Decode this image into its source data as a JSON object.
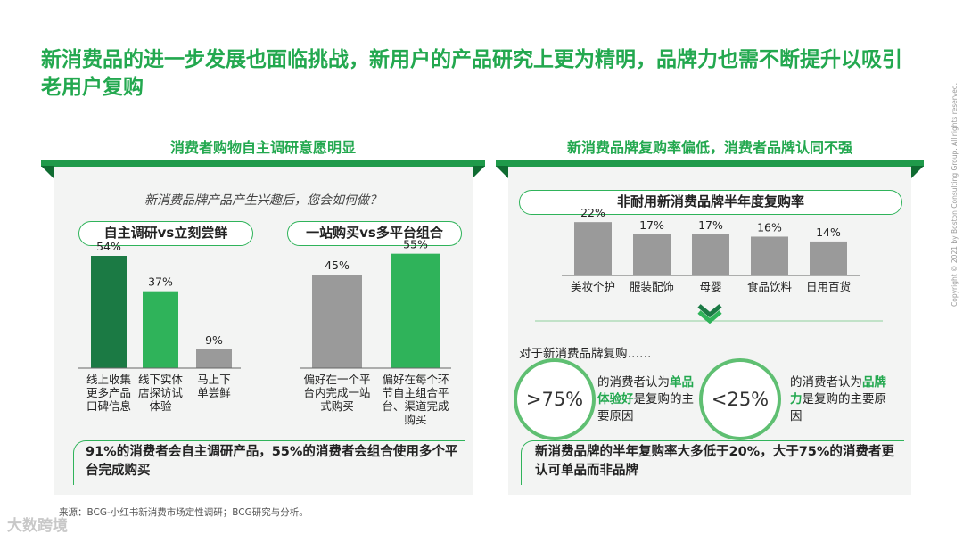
{
  "title": "新消费品的进一步发展也面临挑战，新用户的产品研究上更为精明，品牌力也需不断提升以吸引老用户复购",
  "left_panel": {
    "heading": "消费者购物自主调研意愿明显",
    "question": "新消费品牌产品产生兴趣后，您会如何做？",
    "pill_a": "自主调研vs立刻尝鲜",
    "pill_b": "一站购买vs多平台组合",
    "callout": "91%的消费者会自主调研产品，55%的消费者会组合使用多个平台完成购买"
  },
  "right_panel": {
    "heading": "新消费品牌复购率偏低，消费者品牌认同不强",
    "chart_pill": "非耐用新消费品牌半年度复购率",
    "intro": "对于新消费品牌复购……",
    "ring_a": {
      "value": ">75%",
      "pre": "的消费者认为",
      "hl": "单品体验好",
      "post": "是复购的主要原因"
    },
    "ring_b": {
      "value": "<25%",
      "pre": "的消费者认为",
      "hl": "品牌力",
      "post": "是复购的主要原因"
    },
    "callout": "新消费品牌的半年复购率大多低于20%，大于75%的消费者更认可单品而非品牌"
  },
  "chart_data": [
    {
      "type": "bar",
      "categories": [
        "线上收集更多产品口碑信息",
        "线下实体店探访试体验",
        "马上下单尝鲜"
      ],
      "labels": [
        "线上收集\n更多产品\n口碑信息",
        "线下实体\n店探访试\n体验",
        "马上下\n单尝鲜"
      ],
      "values": [
        54,
        37,
        9
      ],
      "value_labels": [
        "54%",
        "37%",
        "9%"
      ],
      "colors": [
        "#1b7a44",
        "#2fb35a",
        "#9a9a9a"
      ],
      "ylim": [
        0,
        60
      ]
    },
    {
      "type": "bar",
      "categories": [
        "偏好在一个平台内完成一站式购买",
        "偏好在每个环节自主组合平台、渠道完成购买"
      ],
      "labels": [
        "偏好在一个平\n台内完成一站\n式购买",
        "偏好在每个环\n节自主组合平\n台、渠道完成\n购买"
      ],
      "values": [
        45,
        55
      ],
      "value_labels": [
        "45%",
        "55%"
      ],
      "colors": [
        "#9a9a9a",
        "#2fb35a"
      ],
      "ylim": [
        0,
        60
      ]
    },
    {
      "type": "bar",
      "title": "非耐用新消费品牌半年度复购率",
      "categories": [
        "美妆个护",
        "服装配饰",
        "母婴",
        "食品饮料",
        "日用百货"
      ],
      "values": [
        22,
        17,
        17,
        16,
        14
      ],
      "value_labels": [
        "22%",
        "17%",
        "17%",
        "16%",
        "14%"
      ],
      "colors": [
        "#9a9a9a",
        "#9a9a9a",
        "#9a9a9a",
        "#9a9a9a",
        "#9a9a9a"
      ],
      "ylim": [
        0,
        25
      ]
    }
  ],
  "footer": {
    "source": "来源：BCG-小红书新消费市场定性调研；BCG研究与分析。",
    "copyright": "Copyright © 2021 by Boston Consulting Group. All rights reserved.",
    "watermark": "大数跨境"
  },
  "colors": {
    "brand_green": "#23a84f",
    "dark_green": "#1b7a44",
    "bar_grey": "#9a9a9a"
  }
}
